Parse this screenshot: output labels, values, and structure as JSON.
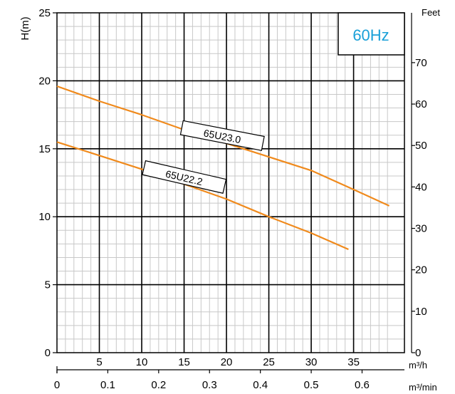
{
  "chart_data": {
    "type": "line",
    "frequency_label": "60Hz",
    "ylabel": "H(m)",
    "ylabel_right": "Feet",
    "xunit_primary": "m³/h",
    "xunit_secondary": "m³/min",
    "xlim": [
      0,
      41
    ],
    "ylim": [
      0,
      25
    ],
    "grid": true,
    "x_ticks_primary": [
      "5",
      "10",
      "15",
      "20",
      "25",
      "30",
      "35"
    ],
    "x_ticks_secondary": [
      "0",
      "0.1",
      "0.2",
      "0.3",
      "0.4",
      "0.5",
      "0.6"
    ],
    "y_ticks": [
      "0",
      "5",
      "10",
      "15",
      "20",
      "25"
    ],
    "y_ticks_right": [
      "0",
      "10",
      "20",
      "30",
      "40",
      "50",
      "60",
      "70"
    ],
    "series": [
      {
        "name": "65U23.0",
        "color": "#f08a1c",
        "x": [
          0,
          5,
          10,
          15,
          20,
          25,
          30,
          35,
          39.2
        ],
        "y": [
          19.6,
          18.5,
          17.5,
          16.4,
          15.4,
          14.4,
          13.4,
          12.0,
          10.8
        ]
      },
      {
        "name": "65U22.2",
        "color": "#f08a1c",
        "x": [
          0,
          5,
          10,
          15,
          20,
          25,
          30,
          34.4
        ],
        "y": [
          15.5,
          14.5,
          13.5,
          12.4,
          11.3,
          10.0,
          8.8,
          7.6
        ]
      }
    ]
  }
}
